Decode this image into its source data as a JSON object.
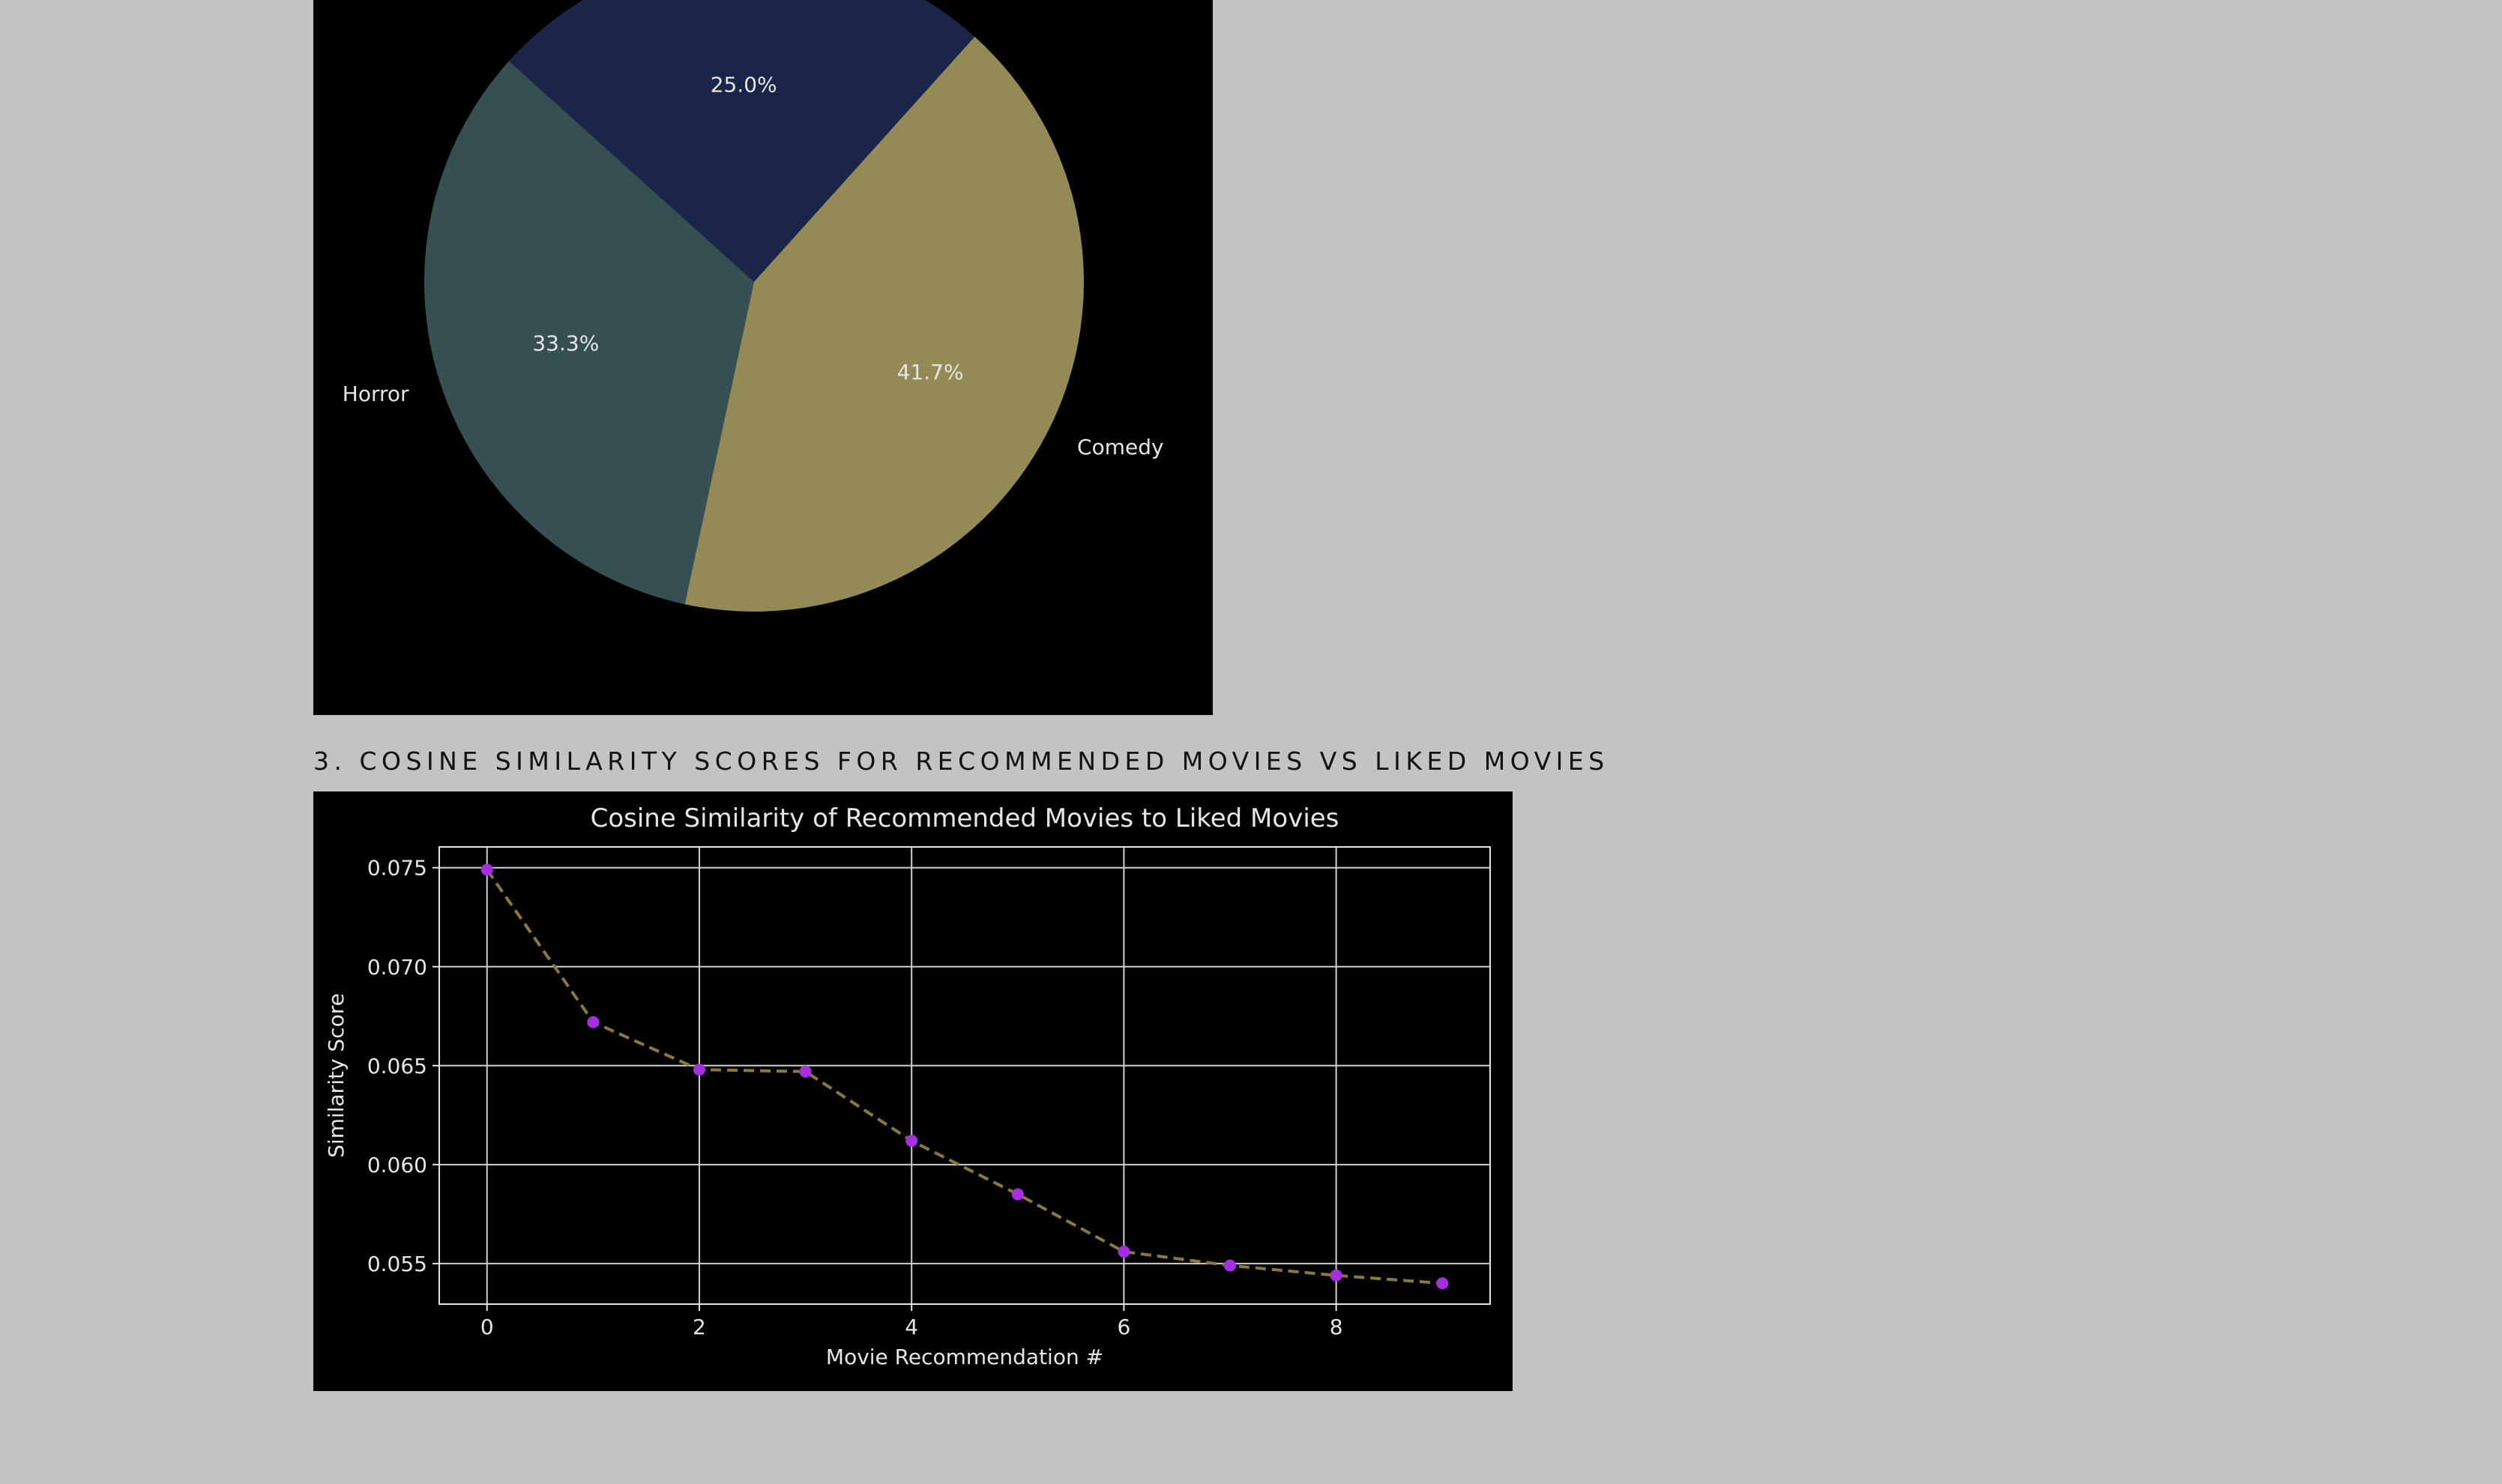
{
  "section": {
    "heading": "3. COSINE SIMILARITY SCORES FOR RECOMMENDED MOVIES VS LIKED MOVIES"
  },
  "chart_data": [
    {
      "type": "pie",
      "labels": [
        "",
        "Horror",
        "Comedy"
      ],
      "values": [
        25.0,
        33.3,
        41.7
      ],
      "autopct_labels": [
        "25.0%",
        "33.3%",
        "41.7%"
      ],
      "colors": [
        "#1b254a",
        "#364f52",
        "#948a55"
      ],
      "note_visible": "Upper portion of figure is cropped; first slice label not visible"
    },
    {
      "type": "line",
      "title": "Cosine Similarity of Recommended Movies to Liked Movies",
      "xlabel": "Movie Recommendation #",
      "ylabel": "Similarity Score",
      "x": [
        0,
        1,
        2,
        3,
        4,
        5,
        6,
        7,
        8,
        9
      ],
      "y": [
        0.0749,
        0.0672,
        0.0648,
        0.0647,
        0.0612,
        0.0585,
        0.0556,
        0.0549,
        0.0544,
        0.054
      ],
      "xlim": [
        -0.45,
        9.45
      ],
      "ylim": [
        0.05295,
        0.07605
      ],
      "xticks": [
        0,
        2,
        4,
        6,
        8
      ],
      "xtick_labels": [
        "0",
        "2",
        "4",
        "6",
        "8"
      ],
      "yticks": [
        0.055,
        0.06,
        0.065,
        0.07,
        0.075
      ],
      "ytick_labels": [
        "0.055",
        "0.060",
        "0.065",
        "0.070",
        "0.075"
      ],
      "grid": true,
      "line_style": "dashed",
      "line_color": "#8a7a3a",
      "marker_color": "#a52fe0"
    }
  ]
}
